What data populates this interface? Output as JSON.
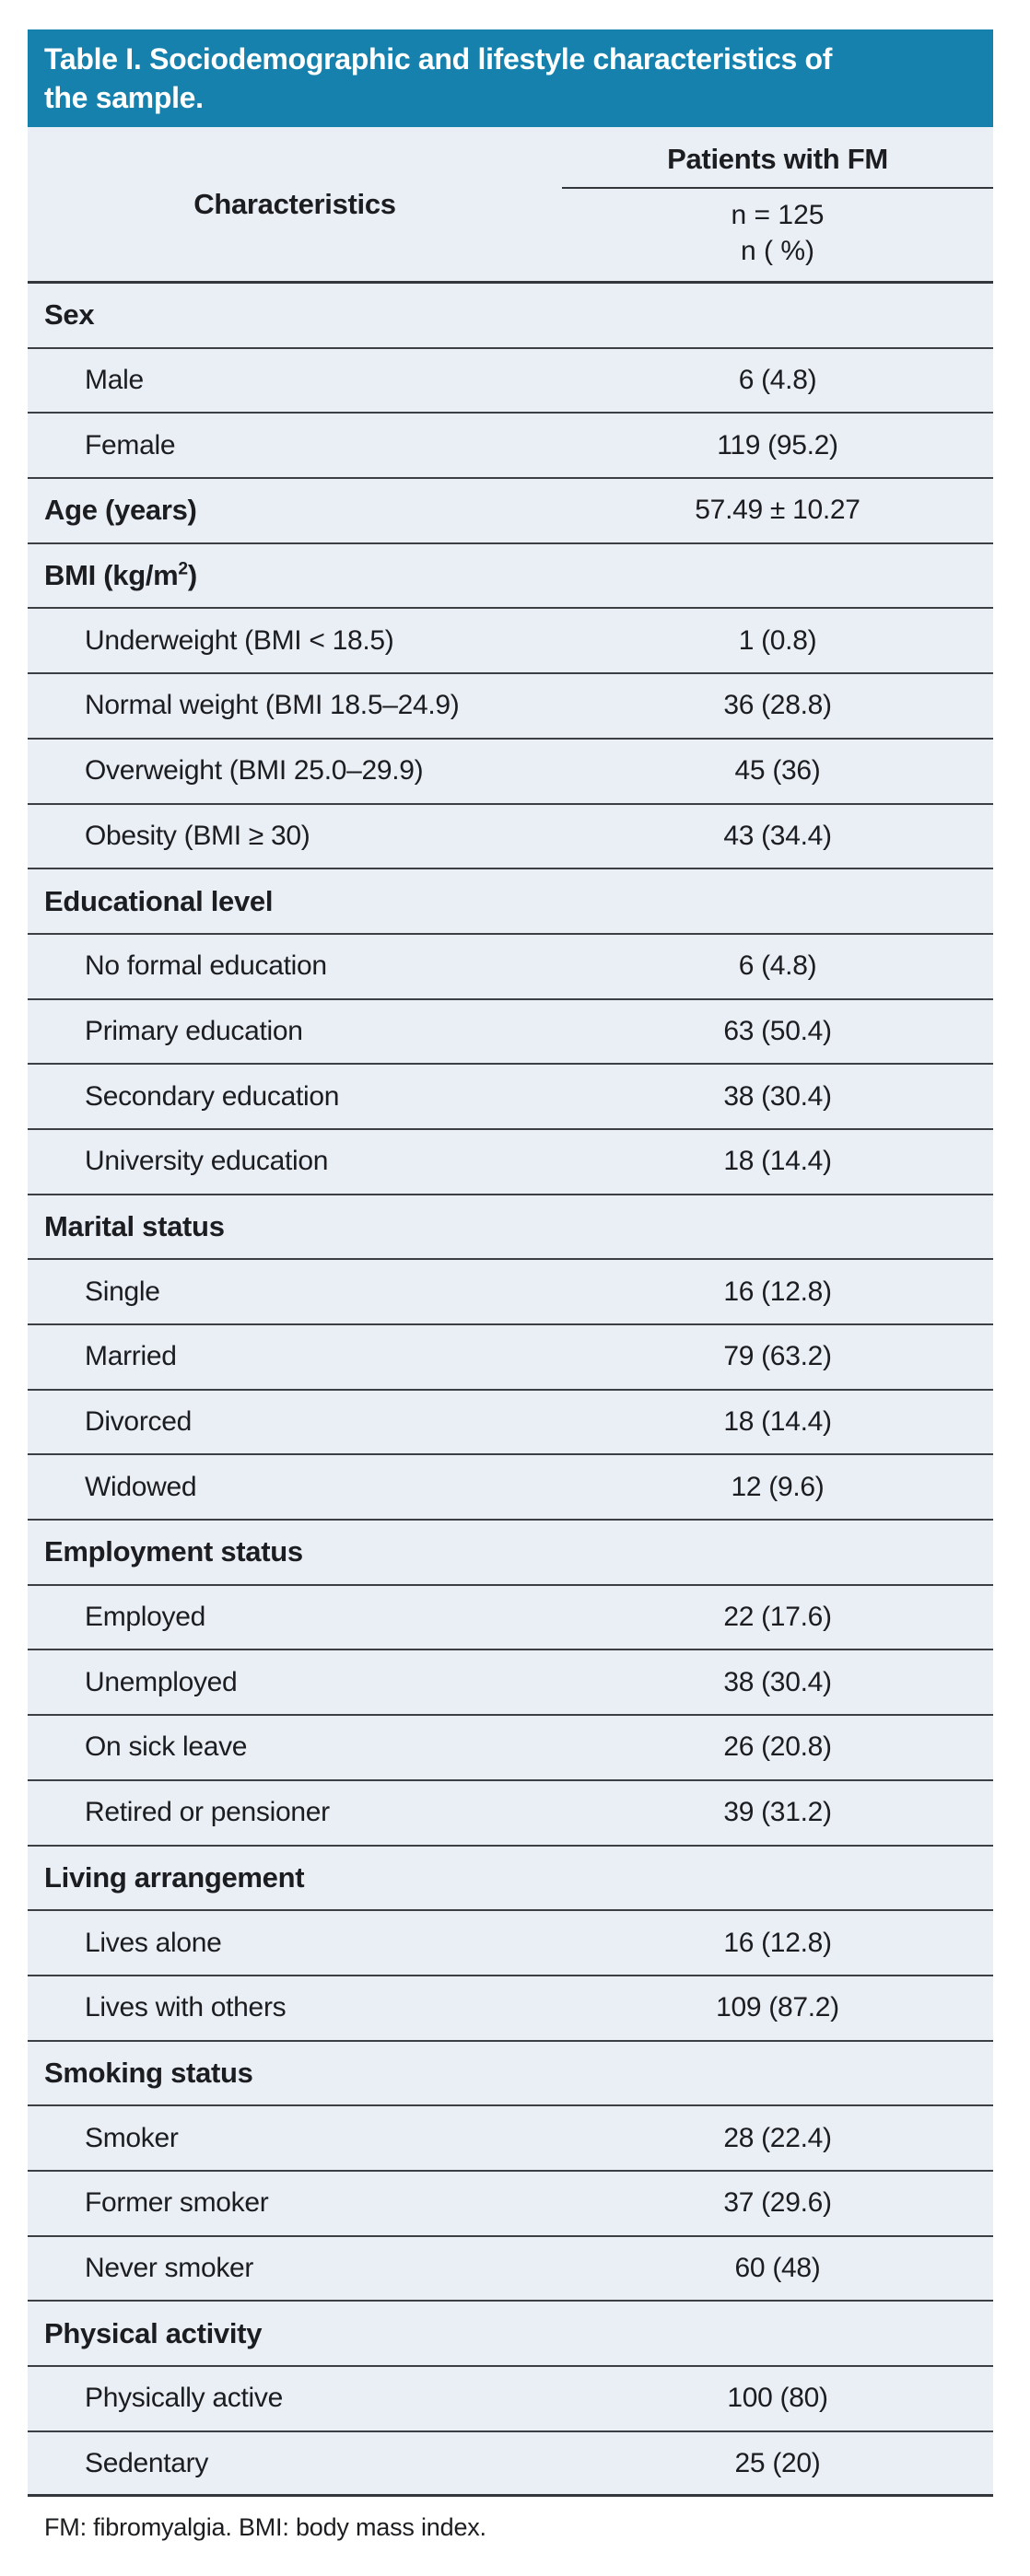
{
  "table": {
    "title_lines": [
      "Table I. Sociodemographic and lifestyle characteristics of",
      "the sample."
    ],
    "header": {
      "characteristics_label": "Characteristics",
      "group_label": "Patients with FM",
      "sub_line1": "n = 125",
      "sub_line2": "n ( %)"
    },
    "rows": [
      {
        "type": "section",
        "label": "Sex",
        "value": ""
      },
      {
        "type": "item",
        "label": "Male",
        "value": "6 (4.8)"
      },
      {
        "type": "item",
        "label": "Female",
        "value": "119 (95.2)"
      },
      {
        "type": "measure",
        "label": "Age (years)",
        "value": "57.49 ± 10.27"
      },
      {
        "type": "section",
        "label": "BMI (kg/m²)",
        "value": ""
      },
      {
        "type": "item",
        "label": "Underweight (BMI < 18.5)",
        "value": "1 (0.8)"
      },
      {
        "type": "item",
        "label": "Normal weight (BMI 18.5–24.9)",
        "value": "36 (28.8)"
      },
      {
        "type": "item",
        "label": "Overweight (BMI 25.0–29.9)",
        "value": "45 (36)"
      },
      {
        "type": "item",
        "label": "Obesity (BMI ≥ 30)",
        "value": "43 (34.4)"
      },
      {
        "type": "section",
        "label": "Educational level",
        "value": ""
      },
      {
        "type": "item",
        "label": "No formal education",
        "value": "6 (4.8)"
      },
      {
        "type": "item",
        "label": "Primary education",
        "value": "63 (50.4)"
      },
      {
        "type": "item",
        "label": "Secondary education",
        "value": "38 (30.4)"
      },
      {
        "type": "item",
        "label": "University education",
        "value": "18 (14.4)"
      },
      {
        "type": "section",
        "label": "Marital status",
        "value": ""
      },
      {
        "type": "item",
        "label": "Single",
        "value": "16 (12.8)"
      },
      {
        "type": "item",
        "label": "Married",
        "value": "79 (63.2)"
      },
      {
        "type": "item",
        "label": "Divorced",
        "value": "18 (14.4)"
      },
      {
        "type": "item",
        "label": "Widowed",
        "value": "12 (9.6)"
      },
      {
        "type": "section",
        "label": "Employment status",
        "value": ""
      },
      {
        "type": "item",
        "label": "Employed",
        "value": "22 (17.6)"
      },
      {
        "type": "item",
        "label": "Unemployed",
        "value": "38 (30.4)"
      },
      {
        "type": "item",
        "label": "On sick leave",
        "value": "26 (20.8)"
      },
      {
        "type": "item",
        "label": "Retired or pensioner",
        "value": "39 (31.2)"
      },
      {
        "type": "section",
        "label": "Living arrangement",
        "value": ""
      },
      {
        "type": "item",
        "label": "Lives alone",
        "value": "16 (12.8)"
      },
      {
        "type": "item",
        "label": "Lives with others",
        "value": "109 (87.2)"
      },
      {
        "type": "section",
        "label": "Smoking status",
        "value": ""
      },
      {
        "type": "item",
        "label": "Smoker",
        "value": "28 (22.4)"
      },
      {
        "type": "item",
        "label": "Former smoker",
        "value": "37 (29.6)"
      },
      {
        "type": "item",
        "label": "Never smoker",
        "value": "60 (48)"
      },
      {
        "type": "section",
        "label": "Physical activity",
        "value": ""
      },
      {
        "type": "item",
        "label": "Physically active",
        "value": "100 (80)"
      },
      {
        "type": "item",
        "label": "Sedentary",
        "value": "25 (20)"
      }
    ],
    "footnote": "FM: fibromyalgia. BMI: body mass index.",
    "colors": {
      "title_bar": "#1581ac",
      "title_text": "#ffffff",
      "body_background": "#eaeef5",
      "rule": "#33373b",
      "text": "#1b1d20",
      "page_background": "#ffffff"
    }
  }
}
